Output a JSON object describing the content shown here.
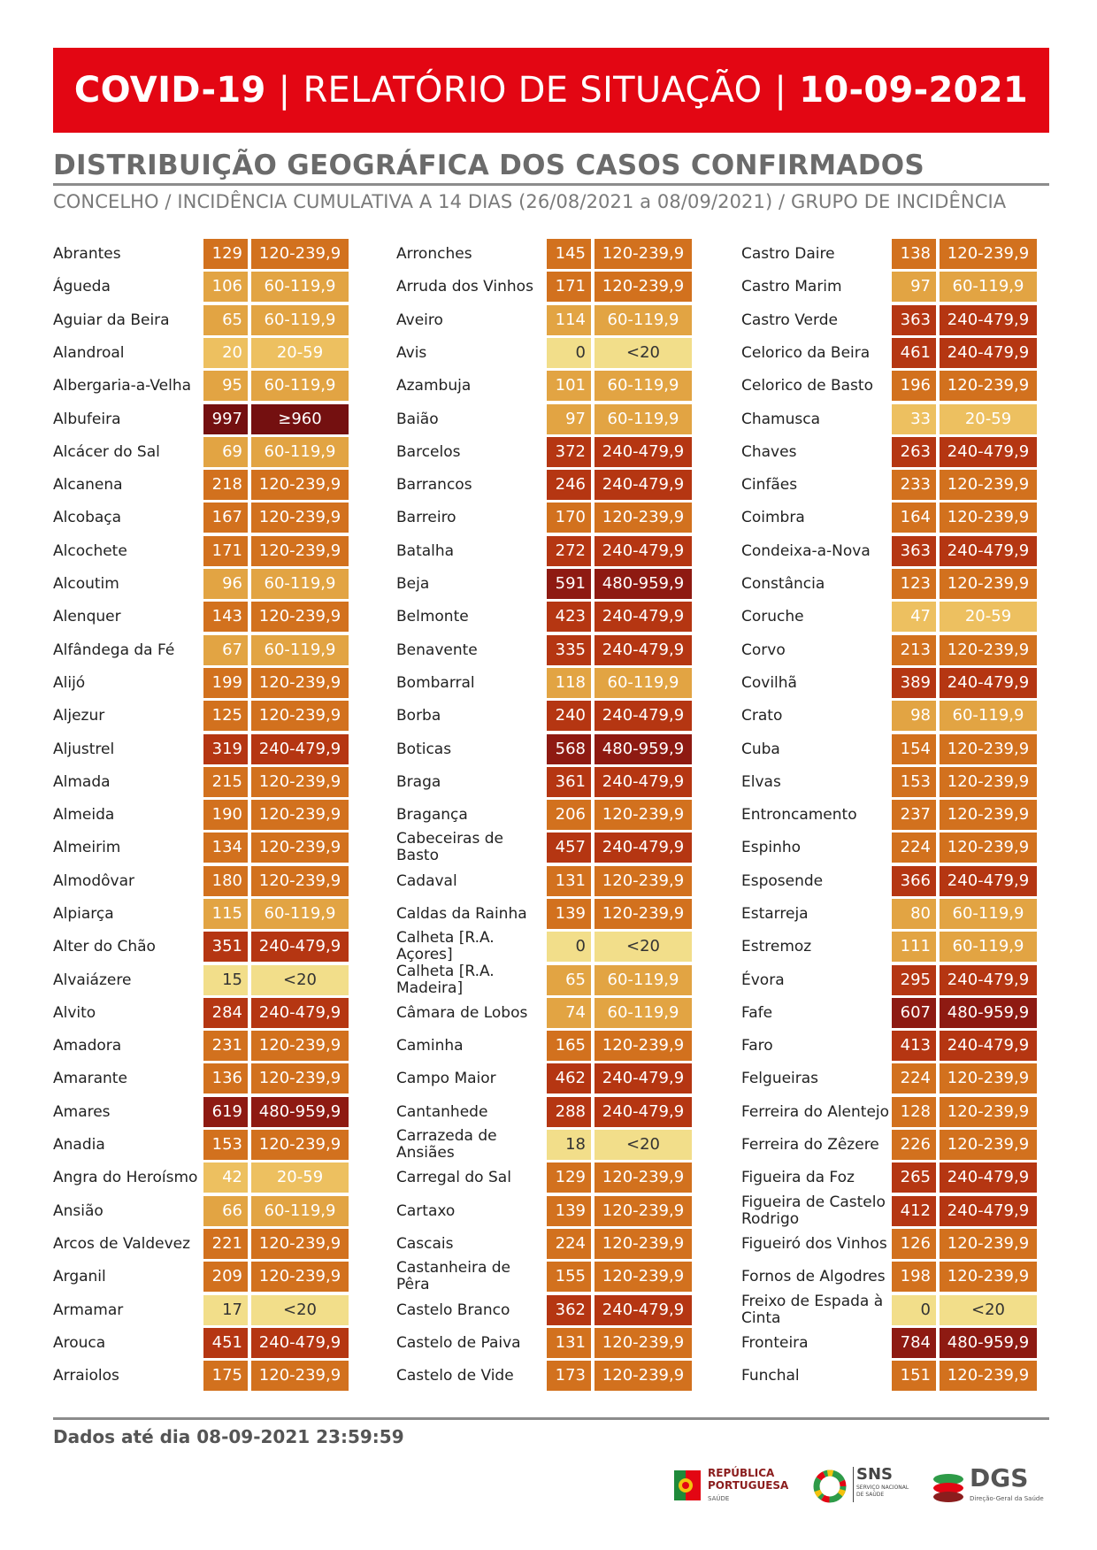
{
  "header": {
    "part1": "COVID-19",
    "sep1": "|",
    "part2": "RELATÓRIO DE SITUAÇÃO",
    "sep2": "|",
    "part3": "10-09-2021"
  },
  "section": {
    "title": "DISTRIBUIÇÃO GEOGRÁFICA DOS CASOS CONFIRMADOS",
    "subtitle": "CONCELHO / INCIDÊNCIA CUMULATIVA A 14 DIAS (26/08/2021 a 08/09/2021) / GRUPO DE INCIDÊNCIA"
  },
  "group_colors": {
    "<20": "#f2de8a",
    "20-59": "#edc060",
    "60-119,9": "#e2a443",
    "120-239,9": "#d2711e",
    "240-479,9": "#b53612",
    "480-959,9": "#8e1a12",
    "≥960": "#741010"
  },
  "columns": [
    [
      {
        "name": "Abrantes",
        "value": "129",
        "group": "120-239,9"
      },
      {
        "name": "Águeda",
        "value": "106",
        "group": "60-119,9"
      },
      {
        "name": "Aguiar da Beira",
        "value": "65",
        "group": "60-119,9"
      },
      {
        "name": "Alandroal",
        "value": "20",
        "group": "20-59"
      },
      {
        "name": "Albergaria-a-Velha",
        "value": "95",
        "group": "60-119,9"
      },
      {
        "name": "Albufeira",
        "value": "997",
        "group": "≥960"
      },
      {
        "name": "Alcácer do Sal",
        "value": "69",
        "group": "60-119,9"
      },
      {
        "name": "Alcanena",
        "value": "218",
        "group": "120-239,9"
      },
      {
        "name": "Alcobaça",
        "value": "167",
        "group": "120-239,9"
      },
      {
        "name": "Alcochete",
        "value": "171",
        "group": "120-239,9"
      },
      {
        "name": "Alcoutim",
        "value": "96",
        "group": "60-119,9"
      },
      {
        "name": "Alenquer",
        "value": "143",
        "group": "120-239,9"
      },
      {
        "name": "Alfândega da Fé",
        "value": "67",
        "group": "60-119,9"
      },
      {
        "name": "Alijó",
        "value": "199",
        "group": "120-239,9"
      },
      {
        "name": "Aljezur",
        "value": "125",
        "group": "120-239,9"
      },
      {
        "name": "Aljustrel",
        "value": "319",
        "group": "240-479,9"
      },
      {
        "name": "Almada",
        "value": "215",
        "group": "120-239,9"
      },
      {
        "name": "Almeida",
        "value": "190",
        "group": "120-239,9"
      },
      {
        "name": "Almeirim",
        "value": "134",
        "group": "120-239,9"
      },
      {
        "name": "Almodôvar",
        "value": "180",
        "group": "120-239,9"
      },
      {
        "name": "Alpiarça",
        "value": "115",
        "group": "60-119,9"
      },
      {
        "name": "Alter do Chão",
        "value": "351",
        "group": "240-479,9"
      },
      {
        "name": "Alvaiázere",
        "value": "15",
        "group": "<20"
      },
      {
        "name": "Alvito",
        "value": "284",
        "group": "240-479,9"
      },
      {
        "name": "Amadora",
        "value": "231",
        "group": "120-239,9"
      },
      {
        "name": "Amarante",
        "value": "136",
        "group": "120-239,9"
      },
      {
        "name": "Amares",
        "value": "619",
        "group": "480-959,9"
      },
      {
        "name": "Anadia",
        "value": "153",
        "group": "120-239,9"
      },
      {
        "name": "Angra do Heroísmo",
        "value": "42",
        "group": "20-59"
      },
      {
        "name": "Ansião",
        "value": "66",
        "group": "60-119,9"
      },
      {
        "name": "Arcos de Valdevez",
        "value": "221",
        "group": "120-239,9"
      },
      {
        "name": "Arganil",
        "value": "209",
        "group": "120-239,9"
      },
      {
        "name": "Armamar",
        "value": "17",
        "group": "<20"
      },
      {
        "name": "Arouca",
        "value": "451",
        "group": "240-479,9"
      },
      {
        "name": "Arraiolos",
        "value": "175",
        "group": "120-239,9"
      }
    ],
    [
      {
        "name": "Arronches",
        "value": "145",
        "group": "120-239,9"
      },
      {
        "name": "Arruda dos Vinhos",
        "value": "171",
        "group": "120-239,9"
      },
      {
        "name": "Aveiro",
        "value": "114",
        "group": "60-119,9"
      },
      {
        "name": "Avis",
        "value": "0",
        "group": "<20"
      },
      {
        "name": "Azambuja",
        "value": "101",
        "group": "60-119,9"
      },
      {
        "name": "Baião",
        "value": "97",
        "group": "60-119,9"
      },
      {
        "name": "Barcelos",
        "value": "372",
        "group": "240-479,9"
      },
      {
        "name": "Barrancos",
        "value": "246",
        "group": "240-479,9"
      },
      {
        "name": "Barreiro",
        "value": "170",
        "group": "120-239,9"
      },
      {
        "name": "Batalha",
        "value": "272",
        "group": "240-479,9"
      },
      {
        "name": "Beja",
        "value": "591",
        "group": "480-959,9"
      },
      {
        "name": "Belmonte",
        "value": "423",
        "group": "240-479,9"
      },
      {
        "name": "Benavente",
        "value": "335",
        "group": "240-479,9"
      },
      {
        "name": "Bombarral",
        "value": "118",
        "group": "60-119,9"
      },
      {
        "name": "Borba",
        "value": "240",
        "group": "240-479,9"
      },
      {
        "name": "Boticas",
        "value": "568",
        "group": "480-959,9"
      },
      {
        "name": "Braga",
        "value": "361",
        "group": "240-479,9"
      },
      {
        "name": "Bragança",
        "value": "206",
        "group": "120-239,9"
      },
      {
        "name": "Cabeceiras de Basto",
        "value": "457",
        "group": "240-479,9"
      },
      {
        "name": "Cadaval",
        "value": "131",
        "group": "120-239,9"
      },
      {
        "name": "Caldas da Rainha",
        "value": "139",
        "group": "120-239,9"
      },
      {
        "name": "Calheta [R.A. Açores]",
        "value": "0",
        "group": "<20"
      },
      {
        "name": "Calheta [R.A. Madeira]",
        "value": "65",
        "group": "60-119,9"
      },
      {
        "name": "Câmara de Lobos",
        "value": "74",
        "group": "60-119,9"
      },
      {
        "name": "Caminha",
        "value": "165",
        "group": "120-239,9"
      },
      {
        "name": "Campo Maior",
        "value": "462",
        "group": "240-479,9"
      },
      {
        "name": "Cantanhede",
        "value": "288",
        "group": "240-479,9"
      },
      {
        "name": "Carrazeda de Ansiães",
        "value": "18",
        "group": "<20"
      },
      {
        "name": "Carregal do Sal",
        "value": "129",
        "group": "120-239,9"
      },
      {
        "name": "Cartaxo",
        "value": "139",
        "group": "120-239,9"
      },
      {
        "name": "Cascais",
        "value": "224",
        "group": "120-239,9"
      },
      {
        "name": "Castanheira de Pêra",
        "value": "155",
        "group": "120-239,9"
      },
      {
        "name": "Castelo Branco",
        "value": "362",
        "group": "240-479,9"
      },
      {
        "name": "Castelo de Paiva",
        "value": "131",
        "group": "120-239,9"
      },
      {
        "name": "Castelo de Vide",
        "value": "173",
        "group": "120-239,9"
      }
    ],
    [
      {
        "name": "Castro Daire",
        "value": "138",
        "group": "120-239,9"
      },
      {
        "name": "Castro Marim",
        "value": "97",
        "group": "60-119,9"
      },
      {
        "name": "Castro Verde",
        "value": "363",
        "group": "240-479,9"
      },
      {
        "name": "Celorico da Beira",
        "value": "461",
        "group": "240-479,9"
      },
      {
        "name": "Celorico de Basto",
        "value": "196",
        "group": "120-239,9"
      },
      {
        "name": "Chamusca",
        "value": "33",
        "group": "20-59"
      },
      {
        "name": "Chaves",
        "value": "263",
        "group": "240-479,9"
      },
      {
        "name": "Cinfães",
        "value": "233",
        "group": "120-239,9"
      },
      {
        "name": "Coimbra",
        "value": "164",
        "group": "120-239,9"
      },
      {
        "name": "Condeixa-a-Nova",
        "value": "363",
        "group": "240-479,9"
      },
      {
        "name": "Constância",
        "value": "123",
        "group": "120-239,9"
      },
      {
        "name": "Coruche",
        "value": "47",
        "group": "20-59"
      },
      {
        "name": "Corvo",
        "value": "213",
        "group": "120-239,9"
      },
      {
        "name": "Covilhã",
        "value": "389",
        "group": "240-479,9"
      },
      {
        "name": "Crato",
        "value": "98",
        "group": "60-119,9"
      },
      {
        "name": "Cuba",
        "value": "154",
        "group": "120-239,9"
      },
      {
        "name": "Elvas",
        "value": "153",
        "group": "120-239,9"
      },
      {
        "name": "Entroncamento",
        "value": "237",
        "group": "120-239,9"
      },
      {
        "name": "Espinho",
        "value": "224",
        "group": "120-239,9"
      },
      {
        "name": "Esposende",
        "value": "366",
        "group": "240-479,9"
      },
      {
        "name": "Estarreja",
        "value": "80",
        "group": "60-119,9"
      },
      {
        "name": "Estremoz",
        "value": "111",
        "group": "60-119,9"
      },
      {
        "name": "Évora",
        "value": "295",
        "group": "240-479,9"
      },
      {
        "name": "Fafe",
        "value": "607",
        "group": "480-959,9"
      },
      {
        "name": "Faro",
        "value": "413",
        "group": "240-479,9"
      },
      {
        "name": "Felgueiras",
        "value": "224",
        "group": "120-239,9"
      },
      {
        "name": "Ferreira do Alentejo",
        "value": "128",
        "group": "120-239,9"
      },
      {
        "name": "Ferreira do Zêzere",
        "value": "226",
        "group": "120-239,9"
      },
      {
        "name": "Figueira da Foz",
        "value": "265",
        "group": "240-479,9"
      },
      {
        "name": "Figueira de Castelo Rodrigo",
        "value": "412",
        "group": "240-479,9"
      },
      {
        "name": "Figueiró dos Vinhos",
        "value": "126",
        "group": "120-239,9"
      },
      {
        "name": "Fornos de Algodres",
        "value": "198",
        "group": "120-239,9"
      },
      {
        "name": "Freixo de Espada à Cinta",
        "value": "0",
        "group": "<20"
      },
      {
        "name": "Fronteira",
        "value": "784",
        "group": "480-959,9"
      },
      {
        "name": "Funchal",
        "value": "151",
        "group": "120-239,9"
      }
    ]
  ],
  "footer": {
    "text": "Dados até dia 08-09-2021 23:59:59"
  },
  "logos": {
    "rp_line1": "REPÚBLICA",
    "rp_line2": "PORTUGUESA",
    "rp_line3": "SAÚDE",
    "sns_title": "SNS",
    "sns_line1": "SERVIÇO NACIONAL",
    "sns_line2": "DE SAÚDE",
    "dgs_title": "DGS",
    "dgs_sub": "Direção-Geral da Saúde"
  }
}
